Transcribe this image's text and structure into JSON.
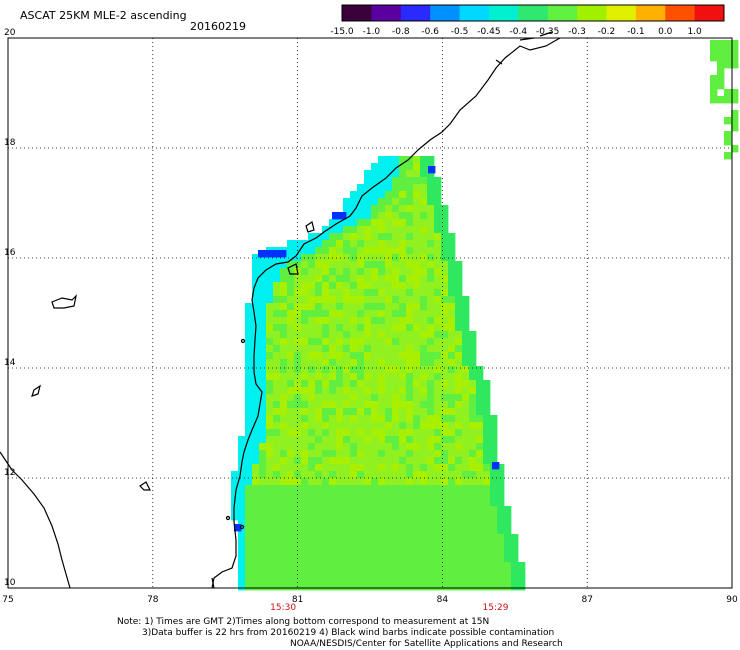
{
  "header": {
    "title": "ASCAT 25KM MLE-2 ascending",
    "date": "20160219"
  },
  "colorbar": {
    "labels": [
      "-15.0",
      "-1.0",
      "-0.8",
      "-0.6",
      "-0.5",
      "-0.45",
      "-0.4",
      "-0.35",
      "-0.3",
      "-0.2",
      "-0.1",
      "0.0",
      "1.0"
    ],
    "colors": [
      "#3a003a",
      "#5a00a0",
      "#2a2aff",
      "#0090ff",
      "#00d8ff",
      "#00f0d0",
      "#30e870",
      "#60f040",
      "#a0f000",
      "#e0f000",
      "#ffb000",
      "#ff5000",
      "#f01010"
    ]
  },
  "map": {
    "lon_labels": [
      "75",
      "78",
      "81",
      "84",
      "87",
      "90"
    ],
    "lat_labels": [
      "20",
      "18",
      "16",
      "14",
      "12",
      "10"
    ],
    "lon_range": [
      75,
      90
    ],
    "lat_range": [
      10,
      20
    ],
    "grid": "dotted",
    "time_labels": [
      "15:30",
      "15:29"
    ],
    "swath_colors": {
      "dominant": "#a8f000",
      "lime": "#90f020",
      "green": "#60ee40",
      "deep_green": "#30e860",
      "cyan": "#00f0f0",
      "blue": "#0030ff"
    }
  },
  "notes": {
    "line1": "Note: 1) Times are GMT 2)Times along bottom correspond to measurement at 15N",
    "line2": "3)Data buffer is 22 hrs from 20160219 4) Black wind barbs indicate possible contamination",
    "line3": "NOAA/NESDIS/Center for Satellite Applications and Research"
  }
}
